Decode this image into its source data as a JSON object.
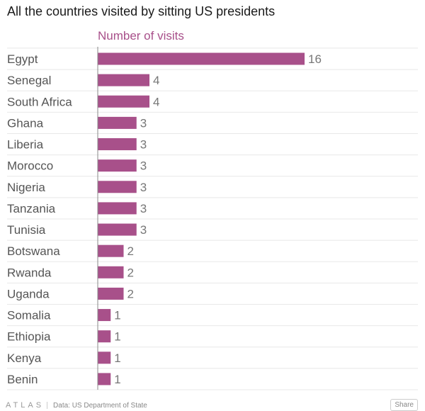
{
  "title": "All the countries visited by sitting US presidents",
  "footer": {
    "brand": "ATLAS",
    "source": "Data: US Department of State",
    "share_label": "Share"
  },
  "colors": {
    "bar": "#a8508a",
    "series_label": "#a8508a",
    "gridline": "#e8e8e8",
    "axis": "#888888"
  },
  "chart_data": {
    "type": "bar",
    "orientation": "horizontal",
    "title": "All the countries visited by sitting US presidents",
    "series": [
      {
        "name": "Number of visits",
        "values": [
          16,
          4,
          4,
          3,
          3,
          3,
          3,
          3,
          3,
          2,
          2,
          2,
          1,
          1,
          1,
          1
        ]
      }
    ],
    "categories": [
      "Egypt",
      "Senegal",
      "South Africa",
      "Ghana",
      "Liberia",
      "Morocco",
      "Nigeria",
      "Tanzania",
      "Tunisia",
      "Botswana",
      "Rwanda",
      "Uganda",
      "Somalia",
      "Ethiopia",
      "Kenya",
      "Benin"
    ],
    "xlim": [
      0,
      16
    ],
    "data_labels": true,
    "grid": true
  }
}
